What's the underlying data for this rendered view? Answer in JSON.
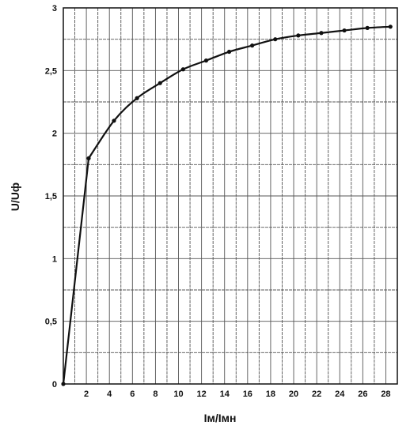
{
  "chart_data": {
    "type": "line",
    "xlabel": "Iм/Iмн",
    "ylabel": "U/Uф",
    "xlim": [
      0,
      29
    ],
    "ylim": [
      0,
      3
    ],
    "x_ticks": [
      2,
      4,
      6,
      8,
      10,
      12,
      14,
      16,
      18,
      20,
      22,
      24,
      26,
      28
    ],
    "x_tick_labels": [
      "2",
      "4",
      "6",
      "8",
      "10",
      "12",
      "14",
      "16",
      "18",
      "20",
      "22",
      "24",
      "26",
      "28"
    ],
    "y_ticks": [
      0,
      0.5,
      1,
      1.5,
      2,
      2.5,
      3
    ],
    "y_tick_labels": [
      "0",
      "0,5",
      "1",
      "1,5",
      "2",
      "2,5",
      "3"
    ],
    "x_minor_step": 1,
    "y_minor_step": 0.25,
    "grid": true,
    "series": [
      {
        "x": [
          0,
          2.2,
          4.4,
          6.4,
          8.4,
          10.4,
          12.4,
          14.4,
          16.4,
          18.4,
          20.4,
          22.4,
          24.4,
          26.4,
          28.4
        ],
        "values": [
          0,
          1.8,
          2.1,
          2.28,
          2.4,
          2.51,
          2.58,
          2.65,
          2.7,
          2.75,
          2.78,
          2.8,
          2.82,
          2.84,
          2.85
        ]
      }
    ],
    "colors": {
      "line": "#111111",
      "grid": "#555555",
      "background": "#ffffff"
    }
  }
}
